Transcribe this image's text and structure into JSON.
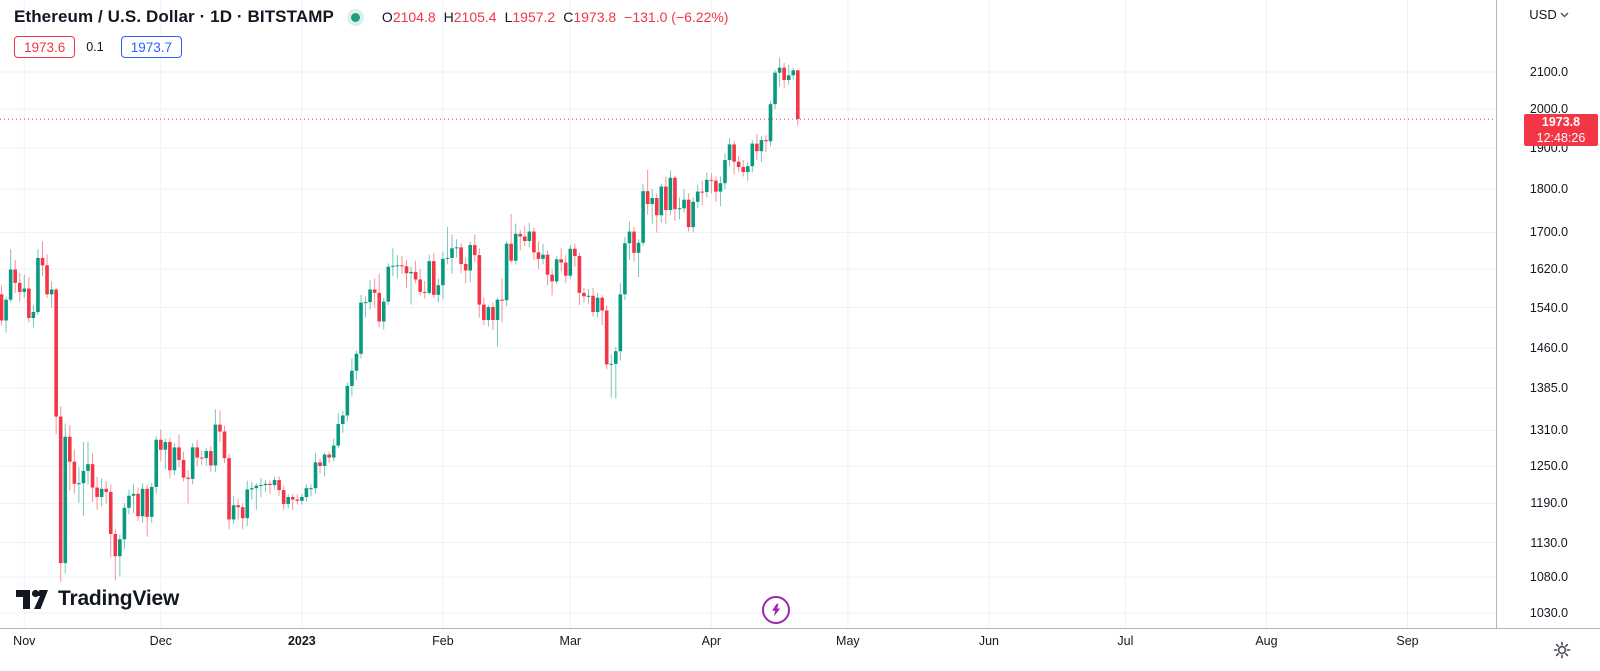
{
  "header": {
    "symbol_title": "Ethereum / U.S. Dollar · 1D · BITSTAMP",
    "ohlc": {
      "open_label": "O",
      "open": "2104.8",
      "high_label": "H",
      "high": "2105.4",
      "low_label": "L",
      "low": "1957.2",
      "close_label": "C",
      "close": "1973.8",
      "change": "−131.0 (−6.22%)"
    },
    "sell_price": "1973.6",
    "spread": "0.1",
    "buy_price": "1973.7"
  },
  "price_axis": {
    "currency": "USD",
    "last_price": "1973.8",
    "countdown": "12:48:26",
    "ticks": [
      {
        "label": "2100.0",
        "value": 2100
      },
      {
        "label": "2000.0",
        "value": 2000
      },
      {
        "label": "1900.0",
        "value": 1900
      },
      {
        "label": "1800.0",
        "value": 1800
      },
      {
        "label": "1700.0",
        "value": 1700
      },
      {
        "label": "1620.0",
        "value": 1620
      },
      {
        "label": "1540.0",
        "value": 1540
      },
      {
        "label": "1460.0",
        "value": 1460
      },
      {
        "label": "1385.0",
        "value": 1385
      },
      {
        "label": "1310.0",
        "value": 1310
      },
      {
        "label": "1250.0",
        "value": 1250
      },
      {
        "label": "1190.0",
        "value": 1190
      },
      {
        "label": "1130.0",
        "value": 1130
      },
      {
        "label": "1080.0",
        "value": 1080
      },
      {
        "label": "1030.0",
        "value": 1030
      }
    ]
  },
  "time_axis": {
    "labels": [
      {
        "label": "Nov",
        "day": 6,
        "bold": false
      },
      {
        "label": "Dec",
        "day": 36,
        "bold": false
      },
      {
        "label": "2023",
        "day": 67,
        "bold": true
      },
      {
        "label": "Feb",
        "day": 98,
        "bold": false
      },
      {
        "label": "Mar",
        "day": 126,
        "bold": false
      },
      {
        "label": "Apr",
        "day": 157,
        "bold": false
      },
      {
        "label": "May",
        "day": 187,
        "bold": false
      },
      {
        "label": "Jun",
        "day": 218,
        "bold": false
      },
      {
        "label": "Jul",
        "day": 248,
        "bold": false
      },
      {
        "label": "Aug",
        "day": 279,
        "bold": false
      },
      {
        "label": "Sep",
        "day": 310,
        "bold": false
      }
    ]
  },
  "footer": {
    "logo_text": "TradingView"
  },
  "colors": {
    "up": "#089981",
    "down": "#f23645",
    "buy_blue": "#2962ff",
    "text": "#131722",
    "grid": "#eef1f7",
    "axis_border": "#b2b5be",
    "tick_mark": "#c7cad1",
    "flash_purple": "#9c27b0",
    "badge_bg": "#f23645",
    "market_dot": "#1e9d80"
  },
  "chart_data": {
    "type": "candlestick",
    "title": "Ethereum / U.S. Dollar",
    "exchange": "BITSTAMP",
    "interval": "1D",
    "price_scale": "logarithmic",
    "first_candle_date": "2022-10-26",
    "last_open": 2104.8,
    "last_high": 2105.4,
    "last_low": 1957.2,
    "last_close": 1973.8,
    "y_axis_visible_range": [
      1005,
      2180
    ],
    "x_axis_visible_months": [
      "Nov",
      "Dec",
      "2023",
      "Feb",
      "Mar",
      "Apr",
      "May",
      "Jun",
      "Jul",
      "Aug",
      "Sep"
    ],
    "grid": true,
    "candles": [
      [
        1466,
        1582,
        1461,
        1567
      ],
      [
        1567,
        1585,
        1504,
        1514
      ],
      [
        1514,
        1562,
        1490,
        1556
      ],
      [
        1556,
        1663,
        1551,
        1619
      ],
      [
        1619,
        1640,
        1570,
        1591
      ],
      [
        1591,
        1612,
        1552,
        1572
      ],
      [
        1572,
        1608,
        1560,
        1579
      ],
      [
        1579,
        1603,
        1510,
        1519
      ],
      [
        1519,
        1545,
        1500,
        1531
      ],
      [
        1531,
        1663,
        1525,
        1644
      ],
      [
        1644,
        1680,
        1605,
        1628
      ],
      [
        1628,
        1652,
        1560,
        1567
      ],
      [
        1567,
        1594,
        1540,
        1577
      ],
      [
        1577,
        1581,
        1303,
        1334
      ],
      [
        1334,
        1352,
        1073,
        1100
      ],
      [
        1100,
        1322,
        1085,
        1299
      ],
      [
        1299,
        1319,
        1210,
        1257
      ],
      [
        1257,
        1277,
        1205,
        1221
      ],
      [
        1221,
        1248,
        1191,
        1222
      ],
      [
        1222,
        1290,
        1171,
        1242
      ],
      [
        1242,
        1291,
        1220,
        1253
      ],
      [
        1253,
        1271,
        1192,
        1215
      ],
      [
        1215,
        1232,
        1180,
        1200
      ],
      [
        1200,
        1230,
        1185,
        1213
      ],
      [
        1213,
        1225,
        1190,
        1208
      ],
      [
        1208,
        1220,
        1108,
        1143
      ],
      [
        1143,
        1150,
        1075,
        1110
      ],
      [
        1110,
        1142,
        1081,
        1135
      ],
      [
        1135,
        1190,
        1120,
        1183
      ],
      [
        1183,
        1212,
        1173,
        1202
      ],
      [
        1202,
        1220,
        1175,
        1205
      ],
      [
        1205,
        1215,
        1163,
        1170
      ],
      [
        1170,
        1222,
        1160,
        1213
      ],
      [
        1213,
        1220,
        1139,
        1169
      ],
      [
        1169,
        1222,
        1160,
        1216
      ],
      [
        1216,
        1300,
        1205,
        1294
      ],
      [
        1294,
        1311,
        1258,
        1277
      ],
      [
        1277,
        1296,
        1245,
        1290
      ],
      [
        1290,
        1298,
        1230,
        1243
      ],
      [
        1243,
        1288,
        1235,
        1281
      ],
      [
        1281,
        1303,
        1248,
        1260
      ],
      [
        1260,
        1274,
        1225,
        1231
      ],
      [
        1231,
        1243,
        1190,
        1229
      ],
      [
        1229,
        1288,
        1220,
        1281
      ],
      [
        1281,
        1294,
        1250,
        1264
      ],
      [
        1264,
        1275,
        1252,
        1263
      ],
      [
        1263,
        1280,
        1250,
        1275
      ],
      [
        1275,
        1283,
        1240,
        1251
      ],
      [
        1251,
        1347,
        1240,
        1320
      ],
      [
        1320,
        1345,
        1290,
        1308
      ],
      [
        1308,
        1318,
        1255,
        1263
      ],
      [
        1263,
        1270,
        1150,
        1165
      ],
      [
        1165,
        1202,
        1158,
        1187
      ],
      [
        1187,
        1197,
        1165,
        1184
      ],
      [
        1184,
        1190,
        1150,
        1167
      ],
      [
        1167,
        1226,
        1155,
        1212
      ],
      [
        1212,
        1224,
        1196,
        1214
      ],
      [
        1214,
        1222,
        1180,
        1218
      ],
      [
        1218,
        1230,
        1200,
        1219
      ],
      [
        1219,
        1227,
        1208,
        1221
      ],
      [
        1221,
        1226,
        1205,
        1219
      ],
      [
        1219,
        1232,
        1212,
        1227
      ],
      [
        1227,
        1233,
        1202,
        1211
      ],
      [
        1211,
        1218,
        1180,
        1189
      ],
      [
        1189,
        1205,
        1182,
        1200
      ],
      [
        1200,
        1205,
        1180,
        1196
      ],
      [
        1196,
        1204,
        1188,
        1194
      ],
      [
        1194,
        1205,
        1188,
        1200
      ],
      [
        1200,
        1220,
        1193,
        1214
      ],
      [
        1214,
        1220,
        1201,
        1214
      ],
      [
        1214,
        1272,
        1205,
        1256
      ],
      [
        1256,
        1262,
        1238,
        1250
      ],
      [
        1250,
        1272,
        1233,
        1269
      ],
      [
        1269,
        1274,
        1255,
        1264
      ],
      [
        1264,
        1296,
        1258,
        1284
      ],
      [
        1284,
        1340,
        1280,
        1321
      ],
      [
        1321,
        1344,
        1306,
        1336
      ],
      [
        1336,
        1395,
        1325,
        1389
      ],
      [
        1389,
        1440,
        1370,
        1417
      ],
      [
        1417,
        1455,
        1400,
        1449
      ],
      [
        1449,
        1566,
        1440,
        1550
      ],
      [
        1550,
        1563,
        1520,
        1551
      ],
      [
        1551,
        1596,
        1536,
        1577
      ],
      [
        1577,
        1600,
        1540,
        1570
      ],
      [
        1570,
        1610,
        1500,
        1512
      ],
      [
        1512,
        1560,
        1496,
        1552
      ],
      [
        1552,
        1632,
        1545,
        1625
      ],
      [
        1625,
        1665,
        1605,
        1627
      ],
      [
        1627,
        1650,
        1600,
        1628
      ],
      [
        1628,
        1648,
        1610,
        1626
      ],
      [
        1626,
        1640,
        1580,
        1611
      ],
      [
        1611,
        1625,
        1546,
        1614
      ],
      [
        1614,
        1638,
        1590,
        1598
      ],
      [
        1598,
        1620,
        1565,
        1572
      ],
      [
        1572,
        1595,
        1558,
        1570
      ],
      [
        1570,
        1650,
        1566,
        1637
      ],
      [
        1637,
        1655,
        1560,
        1566
      ],
      [
        1566,
        1600,
        1550,
        1586
      ],
      [
        1586,
        1658,
        1557,
        1642
      ],
      [
        1642,
        1712,
        1630,
        1644
      ],
      [
        1644,
        1695,
        1610,
        1665
      ],
      [
        1665,
        1685,
        1645,
        1667
      ],
      [
        1667,
        1676,
        1612,
        1631
      ],
      [
        1631,
        1645,
        1590,
        1617
      ],
      [
        1617,
        1680,
        1592,
        1672
      ],
      [
        1672,
        1695,
        1635,
        1650
      ],
      [
        1650,
        1665,
        1520,
        1546
      ],
      [
        1546,
        1560,
        1505,
        1515
      ],
      [
        1515,
        1545,
        1502,
        1541
      ],
      [
        1541,
        1550,
        1495,
        1515
      ],
      [
        1515,
        1560,
        1463,
        1556
      ],
      [
        1556,
        1600,
        1510,
        1555
      ],
      [
        1555,
        1680,
        1543,
        1675
      ],
      [
        1675,
        1742,
        1633,
        1638
      ],
      [
        1638,
        1720,
        1630,
        1697
      ],
      [
        1697,
        1705,
        1660,
        1691
      ],
      [
        1691,
        1715,
        1670,
        1681
      ],
      [
        1681,
        1722,
        1667,
        1702
      ],
      [
        1702,
        1711,
        1640,
        1656
      ],
      [
        1656,
        1680,
        1620,
        1642
      ],
      [
        1642,
        1675,
        1630,
        1651
      ],
      [
        1651,
        1660,
        1586,
        1608
      ],
      [
        1608,
        1620,
        1565,
        1594
      ],
      [
        1594,
        1648,
        1588,
        1641
      ],
      [
        1641,
        1665,
        1615,
        1634
      ],
      [
        1634,
        1650,
        1590,
        1606
      ],
      [
        1606,
        1672,
        1600,
        1664
      ],
      [
        1664,
        1675,
        1625,
        1648
      ],
      [
        1648,
        1655,
        1545,
        1570
      ],
      [
        1570,
        1580,
        1550,
        1563
      ],
      [
        1563,
        1578,
        1548,
        1564
      ],
      [
        1564,
        1580,
        1522,
        1531
      ],
      [
        1531,
        1570,
        1520,
        1560
      ],
      [
        1560,
        1565,
        1505,
        1534
      ],
      [
        1534,
        1545,
        1420,
        1429
      ],
      [
        1429,
        1448,
        1368,
        1430
      ],
      [
        1430,
        1462,
        1366,
        1454
      ],
      [
        1454,
        1590,
        1436,
        1567
      ],
      [
        1567,
        1690,
        1555,
        1676
      ],
      [
        1676,
        1725,
        1640,
        1702
      ],
      [
        1702,
        1712,
        1636,
        1655
      ],
      [
        1655,
        1685,
        1603,
        1677
      ],
      [
        1677,
        1812,
        1670,
        1795
      ],
      [
        1795,
        1846,
        1740,
        1765
      ],
      [
        1765,
        1800,
        1720,
        1779
      ],
      [
        1779,
        1790,
        1700,
        1739
      ],
      [
        1739,
        1812,
        1722,
        1806
      ],
      [
        1806,
        1830,
        1720,
        1751
      ],
      [
        1751,
        1845,
        1740,
        1827
      ],
      [
        1827,
        1832,
        1726,
        1753
      ],
      [
        1753,
        1780,
        1730,
        1755
      ],
      [
        1755,
        1800,
        1745,
        1775
      ],
      [
        1775,
        1790,
        1702,
        1712
      ],
      [
        1712,
        1780,
        1700,
        1770
      ],
      [
        1770,
        1810,
        1755,
        1794
      ],
      [
        1794,
        1820,
        1762,
        1793
      ],
      [
        1793,
        1840,
        1780,
        1822
      ],
      [
        1822,
        1838,
        1790,
        1820
      ],
      [
        1820,
        1830,
        1770,
        1794
      ],
      [
        1794,
        1830,
        1760,
        1814
      ],
      [
        1814,
        1886,
        1800,
        1870
      ],
      [
        1870,
        1925,
        1855,
        1909
      ],
      [
        1909,
        1918,
        1835,
        1866
      ],
      [
        1866,
        1880,
        1840,
        1853
      ],
      [
        1853,
        1870,
        1830,
        1841
      ],
      [
        1841,
        1865,
        1820,
        1855
      ],
      [
        1855,
        1920,
        1840,
        1911
      ],
      [
        1911,
        1935,
        1870,
        1892
      ],
      [
        1892,
        1930,
        1865,
        1920
      ],
      [
        1920,
        1932,
        1890,
        1917
      ],
      [
        1917,
        2020,
        1905,
        2013
      ],
      [
        2013,
        2105,
        2000,
        2098
      ],
      [
        2098,
        2140,
        2060,
        2112
      ],
      [
        2112,
        2125,
        2055,
        2078
      ],
      [
        2078,
        2120,
        2065,
        2091
      ],
      [
        2091,
        2112,
        2080,
        2104.8
      ],
      [
        2104.8,
        2105.4,
        1957.2,
        1973.8
      ]
    ]
  }
}
